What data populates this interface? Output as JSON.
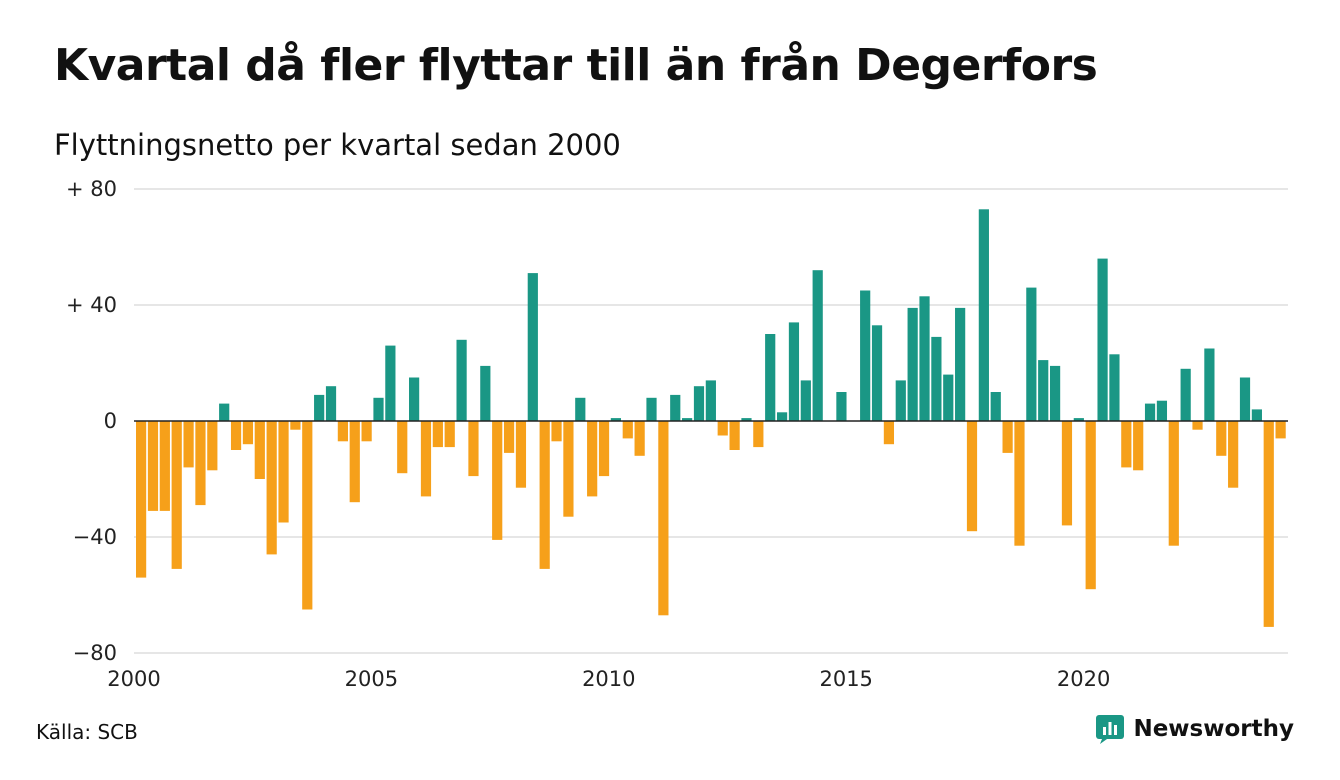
{
  "header": {
    "title": "Kvartal då fler flyttar till än från Degerfors",
    "subtitle": "Flyttningsnetto per kvartal sedan 2000"
  },
  "footer": {
    "source": "Källa: SCB",
    "brand": "Newsworthy"
  },
  "colors": {
    "positive": "#1a9785",
    "negative": "#f6a01a",
    "grid": "#dddddd",
    "text": "#111111"
  },
  "icons": {
    "brand": "newsworthy-logo-icon"
  },
  "chart_data": {
    "type": "bar",
    "start": "2000 Q1",
    "xtick_labels": [
      "2000",
      "2005",
      "2010",
      "2015",
      "2020"
    ],
    "ytick_labels": [
      "+ 80",
      "+ 40",
      "0",
      "−40",
      "−80"
    ],
    "ytick_values": [
      80,
      40,
      0,
      -40,
      -80
    ],
    "ylim": [
      -80,
      80
    ],
    "grid": true,
    "legend": "none",
    "values": [
      -54,
      -31,
      -31,
      -51,
      -16,
      -29,
      -17,
      6,
      -10,
      -8,
      -20,
      -46,
      -35,
      -3,
      -65,
      9,
      12,
      -7,
      -28,
      -7,
      8,
      26,
      -18,
      15,
      -26,
      -9,
      -9,
      28,
      -19,
      19,
      -41,
      -11,
      -23,
      51,
      -51,
      -7,
      -33,
      8,
      -26,
      -19,
      1,
      -6,
      -12,
      8,
      -67,
      9,
      1,
      12,
      14,
      -5,
      -10,
      1,
      -9,
      30,
      3,
      34,
      14,
      52,
      0,
      10,
      0,
      45,
      33,
      -8,
      14,
      39,
      43,
      29,
      16,
      39,
      -38,
      73,
      10,
      -11,
      -43,
      46,
      21,
      19,
      -36,
      1,
      -58,
      56,
      23,
      -16,
      -17,
      6,
      7,
      -43,
      18,
      -3,
      25,
      -12,
      -23,
      15,
      4,
      -71,
      -6
    ]
  }
}
